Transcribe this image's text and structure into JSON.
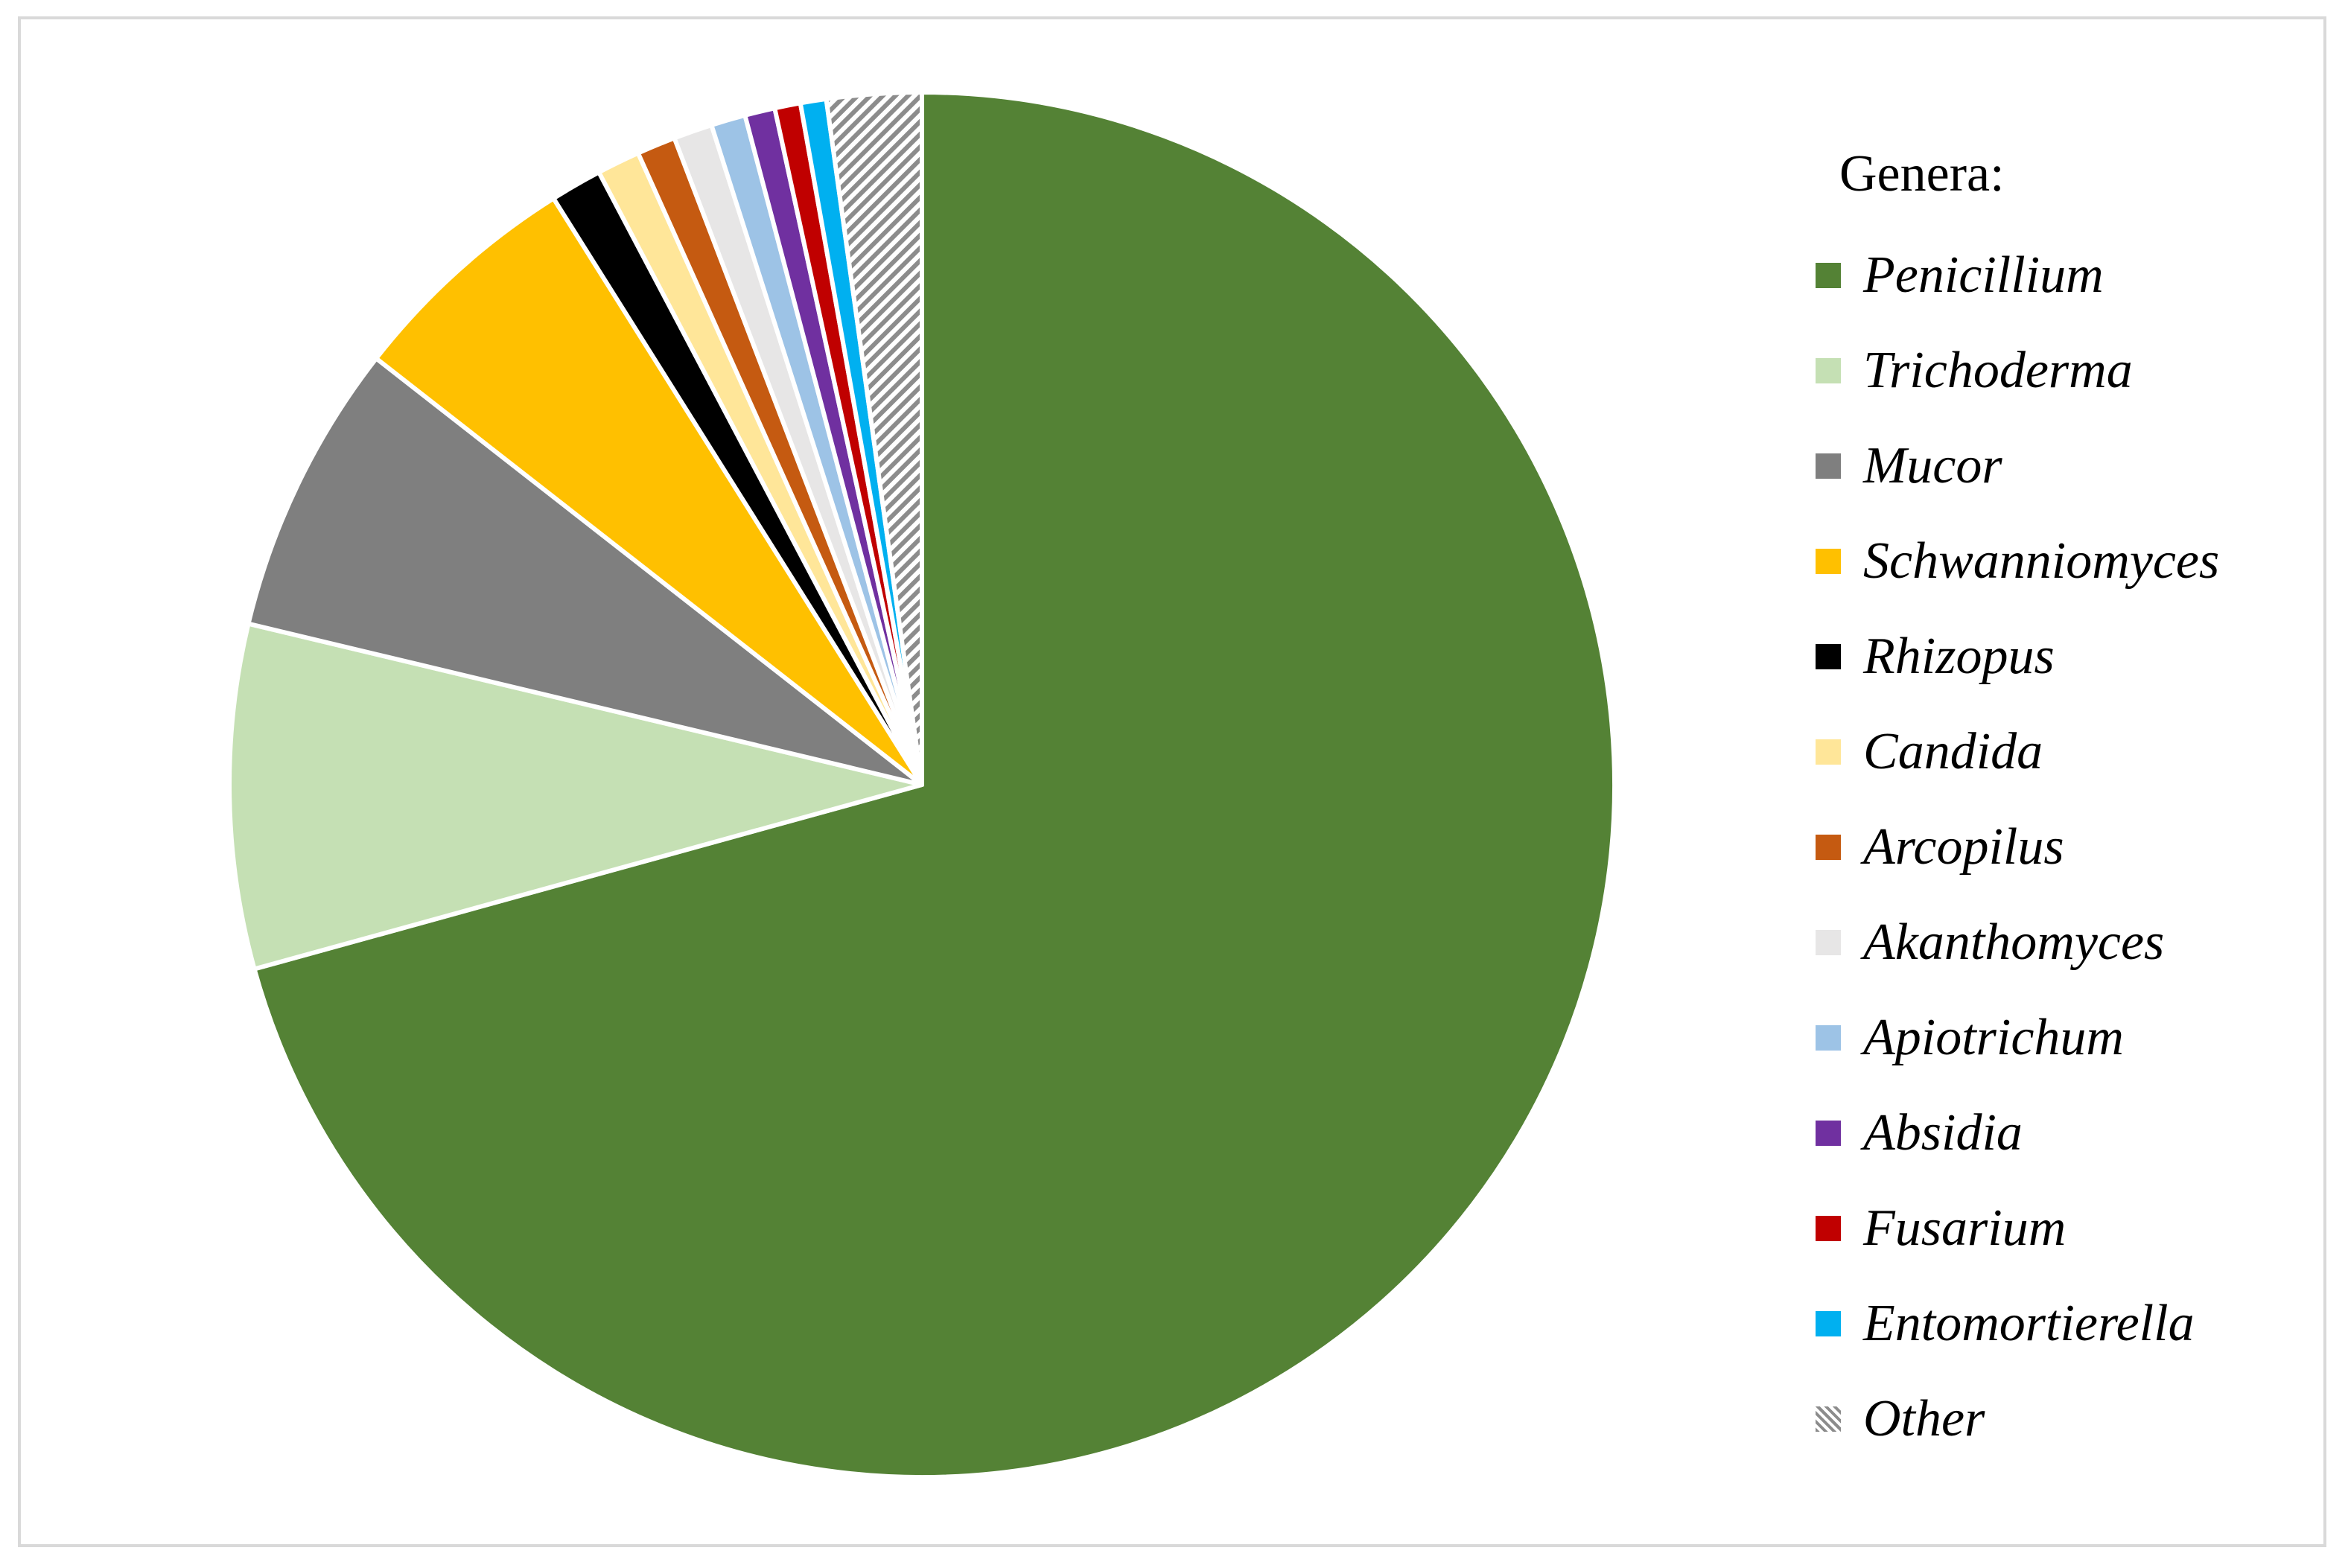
{
  "chart_data": {
    "type": "pie",
    "legend_title": "Genera:",
    "legend_position": "right",
    "start_angle_deg": 0,
    "direction": "clockwise",
    "slices": [
      {
        "label": "Penicillium",
        "value": 70.5,
        "color": "#548235"
      },
      {
        "label": "Trichoderma",
        "value": 8.0,
        "color": "#c5e0b4"
      },
      {
        "label": "Mucor",
        "value": 6.8,
        "color": "#7f7f7f"
      },
      {
        "label": "Schwanniomyces",
        "value": 5.5,
        "color": "#ffc000"
      },
      {
        "label": "Rhizopus",
        "value": 1.2,
        "color": "#000000"
      },
      {
        "label": "Candida",
        "value": 1.0,
        "color": "#ffe699"
      },
      {
        "label": "Arcopilus",
        "value": 0.9,
        "color": "#c55a11"
      },
      {
        "label": "Akanthomyces",
        "value": 0.9,
        "color": "#e7e6e6"
      },
      {
        "label": "Apiotrichum",
        "value": 0.8,
        "color": "#9dc3e6"
      },
      {
        "label": "Absidia",
        "value": 0.7,
        "color": "#7030a0"
      },
      {
        "label": "Fusarium",
        "value": 0.6,
        "color": "#c00000"
      },
      {
        "label": "Entomortierella",
        "value": 0.6,
        "color": "#00b0f0"
      },
      {
        "label": "Other",
        "value": 2.2,
        "color": "#a6a6a6",
        "pattern": "hatched"
      }
    ]
  }
}
